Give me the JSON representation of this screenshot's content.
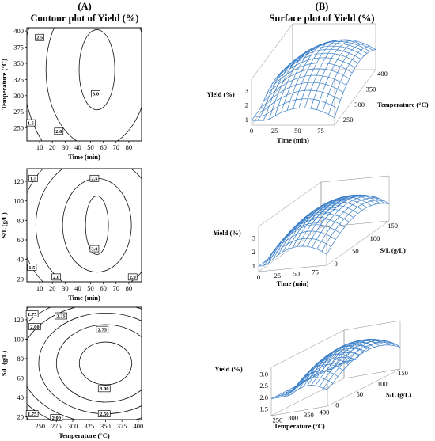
{
  "panel_letters": [
    "(A)",
    "(B)"
  ],
  "headings": [
    "Contour plot of Yield (%)",
    "Surface plot of Yield (%)"
  ],
  "chart_data": [
    {
      "type": "contour",
      "xlabel": "Time (min)",
      "ylabel": "Temperature (°C)",
      "xlim": [
        0,
        90
      ],
      "ylim": [
        230,
        405
      ],
      "xticks": [
        "10",
        "20",
        "30",
        "40",
        "50",
        "60",
        "70",
        "80"
      ],
      "yticks": [
        "250",
        "275",
        "300",
        "325",
        "350",
        "375",
        "400"
      ],
      "optimum": {
        "x": 55,
        "y": 340
      },
      "levels": [
        {
          "value": 3.0,
          "label": "3.0",
          "label_at": {
            "x": 54,
            "y": 303
          }
        },
        {
          "value": 2.5,
          "label": "2.5",
          "label_at": {
            "x": 10,
            "y": 390
          }
        },
        {
          "value": 2.0,
          "label": "2.0",
          "label_at": {
            "x": 25,
            "y": 245
          }
        },
        {
          "value": 1.5,
          "label": "1.5",
          "label_at": {
            "x": 3,
            "y": 258
          }
        }
      ]
    },
    {
      "type": "contour",
      "xlabel": "Time (min)",
      "ylabel": "S/L (g/L)",
      "xlim": [
        0,
        90
      ],
      "ylim": [
        17,
        133
      ],
      "xticks": [
        "10",
        "20",
        "30",
        "40",
        "50",
        "60",
        "70",
        "80"
      ],
      "yticks": [
        "20",
        "40",
        "60",
        "80",
        "100",
        "120"
      ],
      "optimum": {
        "x": 55,
        "y": 75
      },
      "levels": [
        {
          "value": 3.0,
          "label": "3.0",
          "label_at": {
            "x": 53,
            "y": 51
          }
        },
        {
          "value": 2.5,
          "label": "2.5",
          "label_at": {
            "x": 53,
            "y": 123
          }
        },
        {
          "value": 2.0,
          "label": "2.0",
          "label_at": {
            "x": 23,
            "y": 22
          }
        },
        {
          "value": 2.0,
          "label": "2.0",
          "label_at": {
            "x": 83,
            "y": 22
          }
        },
        {
          "value": 1.5,
          "label": "1.5",
          "label_at": {
            "x": 5,
            "y": 123
          }
        },
        {
          "value": 1.5,
          "label": "1.5",
          "label_at": {
            "x": 4,
            "y": 32
          }
        }
      ]
    },
    {
      "type": "contour",
      "xlabel": "Temperature (°C)",
      "ylabel": "S/L (g/L)",
      "xlim": [
        230,
        405
      ],
      "ylim": [
        17,
        133
      ],
      "xticks": [
        "250",
        "275",
        "300",
        "325",
        "350",
        "375",
        "400"
      ],
      "yticks": [
        "20",
        "40",
        "60",
        "80",
        "100",
        "120"
      ],
      "optimum": {
        "x": 350,
        "y": 75
      },
      "levels": [
        {
          "value": 3.0,
          "label": "3.00",
          "label_at": {
            "x": 348,
            "y": 49
          }
        },
        {
          "value": 2.75,
          "label": "2.75",
          "label_at": {
            "x": 345,
            "y": 110
          }
        },
        {
          "value": 2.5,
          "label": "2.50",
          "label_at": {
            "x": 348,
            "y": 23
          }
        },
        {
          "value": 2.25,
          "label": "2.25",
          "label_at": {
            "x": 282,
            "y": 124
          }
        },
        {
          "value": 2.0,
          "label": "2.00",
          "label_at": {
            "x": 242,
            "y": 113
          }
        },
        {
          "value": 2.0,
          "label": "2.00",
          "label_at": {
            "x": 275,
            "y": 19
          }
        },
        {
          "value": 1.75,
          "label": "1.75",
          "label_at": {
            "x": 238,
            "y": 126
          }
        },
        {
          "value": 1.75,
          "label": "1.75",
          "label_at": {
            "x": 238,
            "y": 23
          }
        }
      ]
    },
    {
      "type": "surface",
      "zlabel": "Yield (%)",
      "xlabel": "Time (min)",
      "ylabel": "Temperature (°C)",
      "xlim": [
        0,
        90
      ],
      "ylim": [
        230,
        410
      ],
      "zlim": [
        0.6,
        3.8
      ],
      "xticks": [
        "0",
        "25",
        "50",
        "75"
      ],
      "yticks": [
        "250",
        "300",
        "350",
        "400"
      ],
      "zticks": [
        "1",
        "2",
        "3"
      ]
    },
    {
      "type": "surface",
      "zlabel": "Yield (%)",
      "xlabel": "Time (min)",
      "ylabel": "S/L (g/L)",
      "xlim": [
        0,
        90
      ],
      "ylim": [
        -10,
        165
      ],
      "zlim": [
        0.6,
        3.8
      ],
      "xticks": [
        "0",
        "25",
        "50",
        "75"
      ],
      "yticks": [
        "0",
        "50",
        "100",
        "150"
      ],
      "zticks": [
        "1",
        "2",
        "3"
      ]
    },
    {
      "type": "surface",
      "zlabel": "Yield (%)",
      "xlabel": "Temperature (°C)",
      "ylabel": "S/L (g/L)",
      "xlim": [
        230,
        410
      ],
      "ylim": [
        -10,
        165
      ],
      "zlim": [
        1.2,
        3.3
      ],
      "xticks": [
        "250",
        "300",
        "350",
        "400"
      ],
      "yticks": [
        "0",
        "50",
        "100",
        "150"
      ],
      "zticks": [
        "1.5",
        "2.0",
        "2.5",
        "3.0"
      ]
    }
  ],
  "colors": {
    "mesh": "#3a7fc8",
    "line": "#111111"
  }
}
